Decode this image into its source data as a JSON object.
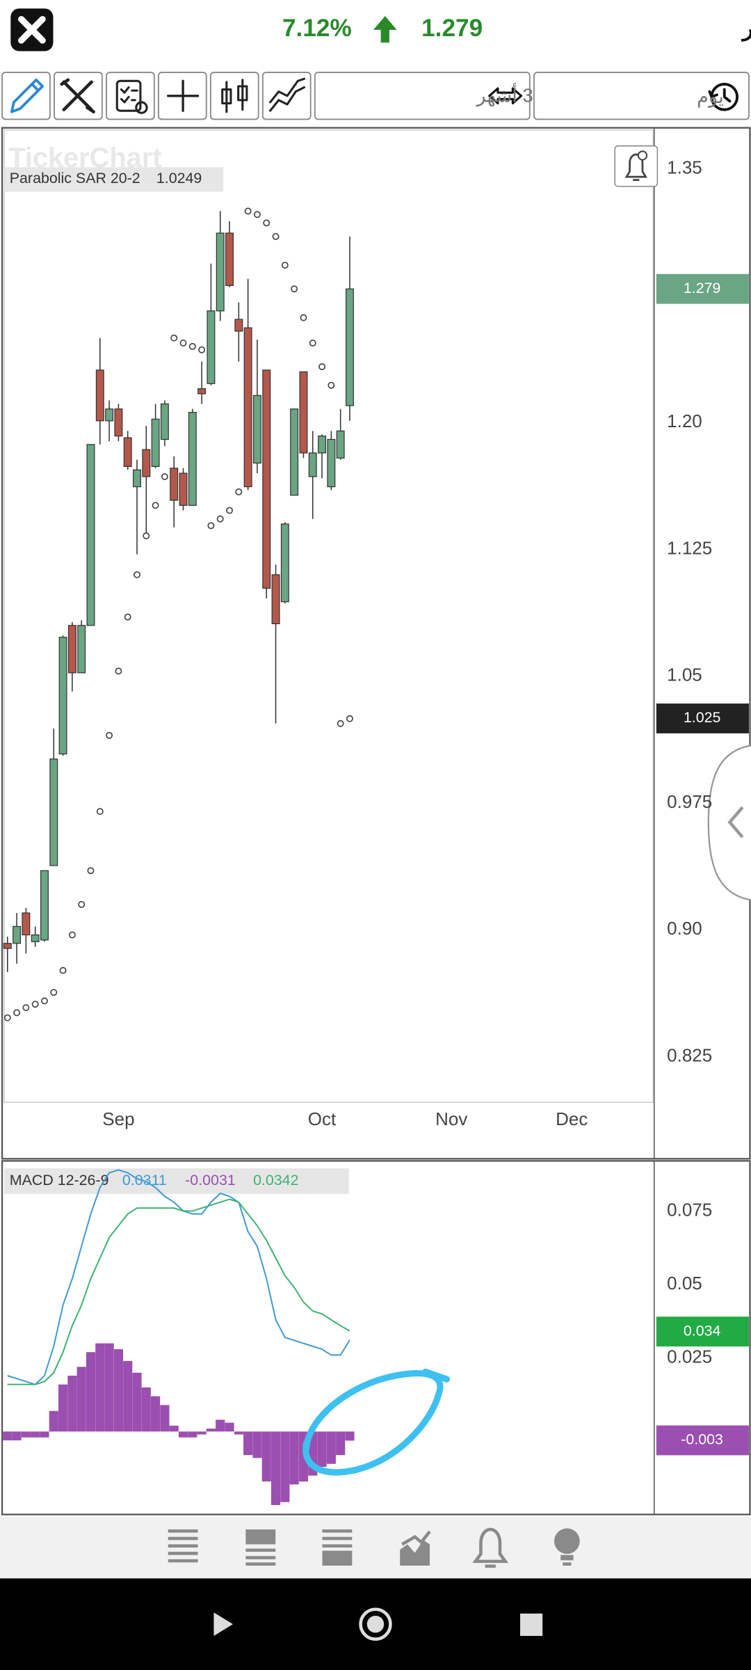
{
  "header": {
    "change": "7.12%",
    "price": "1.279",
    "name": "مزايا قطر"
  },
  "toolbar": {
    "period": "3 أشهر",
    "interval": "يوم"
  },
  "chart_data": [
    {
      "type": "candlestick",
      "watermark": "TickerChart",
      "indicator": "Parabolic SAR 20-2",
      "xlim": [
        -0.35,
        69.8
      ],
      "xticks": [
        {
          "value": 12,
          "label": "Sep"
        },
        {
          "value": 34,
          "label": "Oct"
        },
        {
          "value": 48,
          "label": "Nov"
        },
        {
          "value": 61,
          "label": "Dec"
        }
      ],
      "ylim": [
        0.798,
        1.373
      ],
      "yticks": [
        1.35,
        {
          "value": 1.2,
          "label": "1.20"
        },
        1.125,
        1.05,
        0.975,
        {
          "value": 0.9,
          "label": "0.90"
        },
        0.825
      ],
      "up_color": "#6aa584",
      "down_color": "#b5584c",
      "open": [
        0.892,
        0.892,
        0.91,
        0.893,
        0.894,
        0.938,
        1.004,
        1.08,
        1.052,
        1.08,
        1.231,
        1.201,
        1.208,
        1.191,
        1.162,
        1.184,
        1.174,
        1.19,
        1.173,
        1.17,
        1.151,
        1.22,
        1.223,
        1.266,
        1.312,
        1.261,
        1.256,
        1.176,
        1.231,
        1.11,
        1.094,
        1.157,
        1.23,
        1.168,
        1.182,
        1.162,
        1.179,
        1.21
      ],
      "high": [
        0.896,
        0.91,
        0.913,
        0.902,
        0.935,
        1.019,
        1.074,
        1.082,
        1.083,
        1.187,
        1.25,
        1.213,
        1.211,
        1.195,
        1.178,
        1.198,
        1.211,
        1.213,
        1.18,
        1.173,
        1.208,
        1.236,
        1.294,
        1.325,
        1.319,
        1.271,
        1.285,
        1.249,
        1.231,
        1.116,
        1.141,
        1.208,
        1.23,
        1.195,
        1.193,
        1.195,
        1.208,
        1.31
      ],
      "low": [
        0.875,
        0.88,
        0.886,
        0.89,
        0.893,
        0.938,
        1.003,
        1.041,
        1.052,
        1.08,
        1.187,
        1.189,
        1.189,
        1.172,
        1.122,
        1.135,
        1.173,
        1.186,
        1.138,
        1.148,
        1.151,
        1.211,
        1.222,
        1.26,
        1.28,
        1.236,
        1.16,
        1.17,
        1.096,
        1.022,
        1.093,
        1.157,
        1.179,
        1.143,
        1.167,
        1.16,
        1.178,
        1.201
      ],
      "close": [
        0.889,
        0.902,
        0.897,
        0.897,
        0.935,
        1.001,
        1.073,
        1.052,
        1.08,
        1.187,
        1.201,
        1.208,
        1.192,
        1.174,
        1.172,
        1.168,
        1.202,
        1.211,
        1.154,
        1.151,
        1.206,
        1.217,
        1.266,
        1.312,
        1.281,
        1.254,
        1.162,
        1.216,
        1.102,
        1.081,
        1.14,
        1.208,
        1.182,
        1.182,
        1.192,
        1.19,
        1.195,
        1.279
      ],
      "sar": {
        "color": "#444444",
        "values": [
          0.848,
          0.851,
          0.854,
          0.856,
          0.858,
          0.863,
          0.876,
          0.897,
          0.915,
          0.935,
          0.97,
          1.015,
          1.053,
          1.085,
          1.11,
          1.133,
          1.151,
          1.168,
          1.25,
          1.247,
          1.245,
          1.243,
          1.139,
          1.143,
          1.148,
          1.159,
          1.325,
          1.323,
          1.318,
          1.31,
          1.293,
          1.279,
          1.262,
          1.247,
          1.233,
          1.222,
          1.022,
          1.0249
        ]
      },
      "price_labels": [
        {
          "value": 1.025,
          "color": "#222222"
        }
      ]
    },
    {
      "type": "macd",
      "title": "MACD 12-26-9",
      "xlim": [
        -0.35,
        69.8
      ],
      "ylim": [
        -0.0275,
        0.0906
      ],
      "yticks": [
        0.075,
        0.05,
        0.025
      ],
      "series": [
        {
          "color": "#3d9ad1",
          "kind": "line",
          "values": [
            0.019,
            0.018,
            0.017,
            0.016,
            0.019,
            0.029,
            0.043,
            0.052,
            0.063,
            0.074,
            0.083,
            0.088,
            0.089,
            0.088,
            0.086,
            0.085,
            0.083,
            0.08,
            0.078,
            0.075,
            0.074,
            0.074,
            0.078,
            0.081,
            0.08,
            0.078,
            0.068,
            0.063,
            0.052,
            0.038,
            0.032,
            0.031,
            0.03,
            0.029,
            0.028,
            0.026,
            0.026,
            0.0311
          ]
        },
        {
          "color": "#9b4fb0",
          "kind": "histogram",
          "values": [
            -0.003,
            -0.003,
            -0.002,
            -0.002,
            -0.002,
            0.007,
            0.016,
            0.019,
            0.022,
            0.027,
            0.03,
            0.03,
            0.028,
            0.024,
            0.02,
            0.015,
            0.012,
            0.009,
            0.002,
            -0.002,
            -0.002,
            -0.001,
            0.001,
            0.004,
            0.003,
            -0.001,
            -0.008,
            -0.009,
            -0.017,
            -0.025,
            -0.024,
            -0.018,
            -0.017,
            -0.015,
            -0.012,
            -0.011,
            -0.008,
            -0.0031
          ]
        },
        {
          "color": "#3cb371",
          "kind": "line",
          "values": [
            0.016,
            0.016,
            0.016,
            0.016,
            0.017,
            0.02,
            0.027,
            0.036,
            0.043,
            0.052,
            0.059,
            0.066,
            0.07,
            0.074,
            0.076,
            0.076,
            0.076,
            0.076,
            0.076,
            0.075,
            0.075,
            0.076,
            0.077,
            0.078,
            0.079,
            0.078,
            0.074,
            0.07,
            0.065,
            0.059,
            0.053,
            0.049,
            0.044,
            0.041,
            0.04,
            0.038,
            0.036,
            0.0342
          ]
        }
      ],
      "price_labels": [
        {
          "value": 0.034,
          "color": "#22aa44"
        },
        {
          "value": -0.003,
          "color": "#9b4fb0"
        }
      ]
    }
  ]
}
